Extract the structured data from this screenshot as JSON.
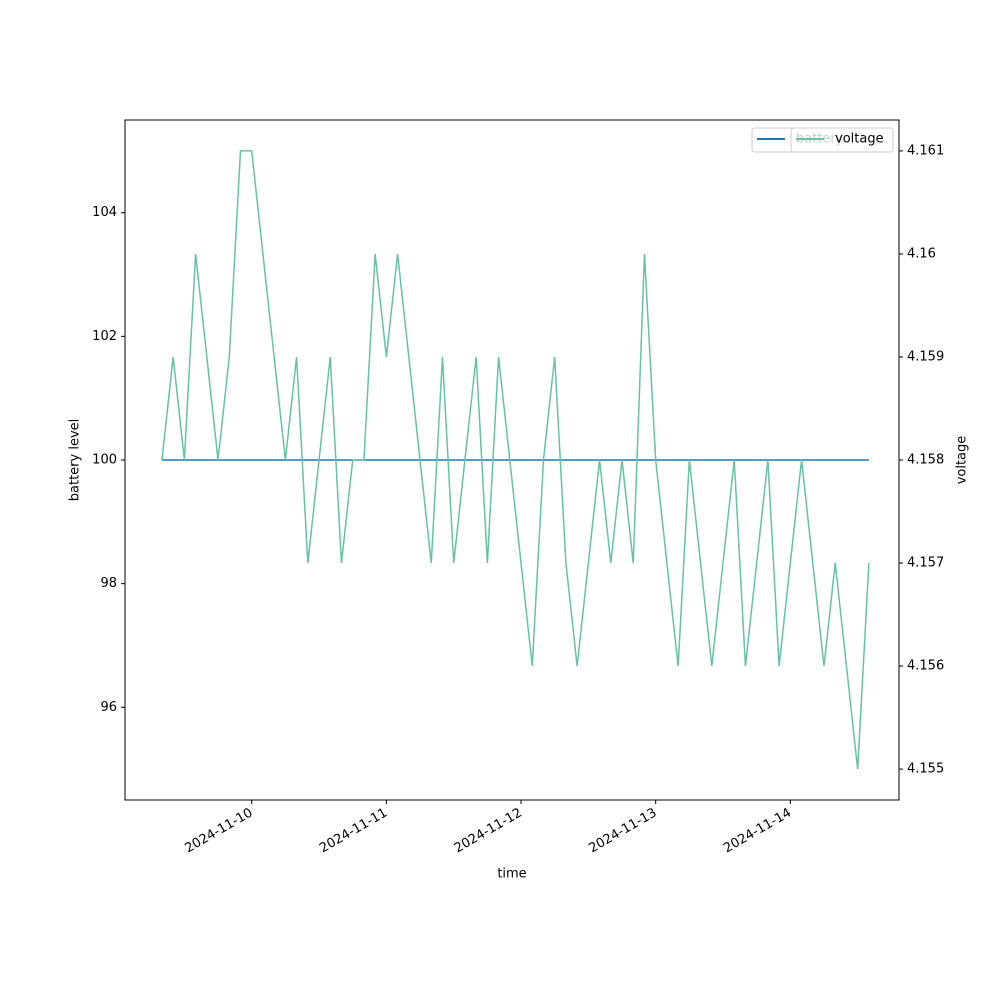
{
  "chart_data": {
    "type": "line",
    "xlabel": "time",
    "ylabel": "battery level",
    "y2label": "voltage",
    "x": [
      "2024-11-09T08:00",
      "2024-11-09T10:00",
      "2024-11-09T12:00",
      "2024-11-09T14:00",
      "2024-11-09T16:00",
      "2024-11-09T18:00",
      "2024-11-09T20:00",
      "2024-11-09T22:00",
      "2024-11-10T00:00",
      "2024-11-10T02:00",
      "2024-11-10T04:00",
      "2024-11-10T06:00",
      "2024-11-10T08:00",
      "2024-11-10T10:00",
      "2024-11-10T12:00",
      "2024-11-10T14:00",
      "2024-11-10T16:00",
      "2024-11-10T18:00",
      "2024-11-10T20:00",
      "2024-11-10T22:00",
      "2024-11-11T00:00",
      "2024-11-11T02:00",
      "2024-11-11T04:00",
      "2024-11-11T06:00",
      "2024-11-11T08:00",
      "2024-11-11T10:00",
      "2024-11-11T12:00",
      "2024-11-11T14:00",
      "2024-11-11T16:00",
      "2024-11-11T18:00",
      "2024-11-11T20:00",
      "2024-11-11T22:00",
      "2024-11-12T00:00",
      "2024-11-12T02:00",
      "2024-11-12T04:00",
      "2024-11-12T06:00",
      "2024-11-12T08:00",
      "2024-11-12T10:00",
      "2024-11-12T12:00",
      "2024-11-12T14:00",
      "2024-11-12T16:00",
      "2024-11-12T18:00",
      "2024-11-12T20:00",
      "2024-11-12T22:00",
      "2024-11-13T00:00",
      "2024-11-13T02:00",
      "2024-11-13T04:00",
      "2024-11-13T06:00",
      "2024-11-13T08:00",
      "2024-11-13T10:00",
      "2024-11-13T12:00",
      "2024-11-13T14:00",
      "2024-11-13T16:00",
      "2024-11-13T18:00",
      "2024-11-13T20:00",
      "2024-11-13T22:00",
      "2024-11-14T00:00",
      "2024-11-14T02:00",
      "2024-11-14T04:00",
      "2024-11-14T06:00",
      "2024-11-14T08:00",
      "2024-11-14T10:00",
      "2024-11-14T12:00",
      "2024-11-14T14:00"
    ],
    "series": [
      {
        "name": "battery",
        "color": "#1f77b4",
        "axis": "y",
        "values": [
          100,
          100,
          100,
          100,
          100,
          100,
          100,
          100,
          100,
          100,
          100,
          100,
          100,
          100,
          100,
          100,
          100,
          100,
          100,
          100,
          100,
          100,
          100,
          100,
          100,
          100,
          100,
          100,
          100,
          100,
          100,
          100,
          100,
          100,
          100,
          100,
          100,
          100,
          100,
          100,
          100,
          100,
          100,
          100,
          100,
          100,
          100,
          100,
          100,
          100,
          100,
          100,
          100,
          100,
          100,
          100,
          100,
          100,
          100,
          100,
          100,
          100,
          100,
          100
        ]
      },
      {
        "name": "voltage",
        "color": "#66c2a5",
        "axis": "y2",
        "values": [
          4.158,
          4.159,
          4.158,
          4.16,
          4.159,
          4.158,
          4.159,
          4.161,
          4.161,
          4.16,
          4.159,
          4.158,
          4.159,
          4.157,
          4.158,
          4.159,
          4.157,
          4.158,
          4.158,
          4.16,
          4.159,
          4.16,
          4.159,
          4.158,
          4.157,
          4.159,
          4.157,
          4.158,
          4.159,
          4.157,
          4.159,
          4.158,
          4.157,
          4.156,
          4.158,
          4.159,
          4.157,
          4.156,
          4.157,
          4.158,
          4.157,
          4.158,
          4.157,
          4.16,
          4.158,
          4.157,
          4.156,
          4.158,
          4.157,
          4.156,
          4.157,
          4.158,
          4.156,
          4.157,
          4.158,
          4.156,
          4.157,
          4.158,
          4.157,
          4.156,
          4.157,
          4.156,
          4.155,
          4.157
        ]
      }
    ],
    "xlim": [
      "2024-11-09T01:25",
      "2024-11-14T19:22"
    ],
    "xticks": [
      "2024-11-10",
      "2024-11-11",
      "2024-11-12",
      "2024-11-13",
      "2024-11-14"
    ],
    "ylim": [
      94.5,
      105.5
    ],
    "yticks": [
      96,
      98,
      100,
      102,
      104
    ],
    "y2lim": [
      4.1547,
      4.1613
    ],
    "y2ticks": [
      4.155,
      4.156,
      4.157,
      4.158,
      4.159,
      4.16,
      4.161
    ],
    "legend": "upper right"
  }
}
